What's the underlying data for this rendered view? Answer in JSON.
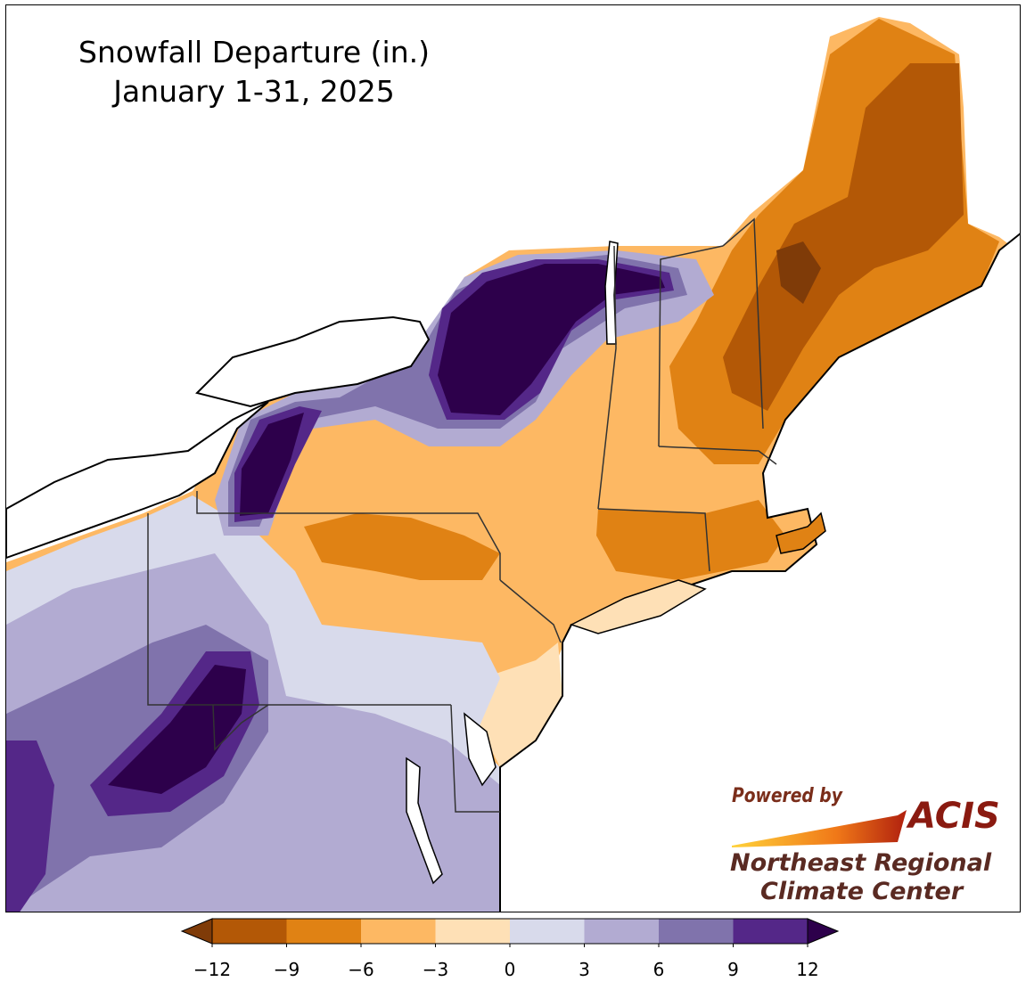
{
  "map": {
    "title_line1": "Snowfall Departure (in.)",
    "title_line2": "January 1-31, 2025"
  },
  "credit": {
    "powered_by": "Powered by",
    "acis": "ACIS",
    "org_line1": "Northeast Regional",
    "org_line2": "Climate Center"
  },
  "legend": {
    "ticks": [
      "−12",
      "−9",
      "−6",
      "−3",
      "0",
      "3",
      "6",
      "9",
      "12"
    ],
    "bins": [
      {
        "range": [
          -12,
          -9
        ],
        "color": "#b35806"
      },
      {
        "range": [
          -9,
          -6
        ],
        "color": "#e08214"
      },
      {
        "range": [
          -6,
          -3
        ],
        "color": "#fdb863"
      },
      {
        "range": [
          -3,
          0
        ],
        "color": "#fee0b6"
      },
      {
        "range": [
          0,
          3
        ],
        "color": "#d8daeb"
      },
      {
        "range": [
          3,
          6
        ],
        "color": "#b2abd2"
      },
      {
        "range": [
          6,
          9
        ],
        "color": "#8073ac"
      },
      {
        "range": [
          9,
          12
        ],
        "color": "#542788"
      }
    ],
    "under_color": "#7f3b08",
    "over_color": "#2d004b"
  }
}
